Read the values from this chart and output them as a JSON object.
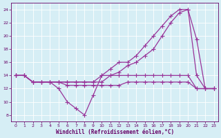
{
  "bg_color": "#d6eef5",
  "line_color": "#993399",
  "grid_color": "#ffffff",
  "xlabel": "Windchill (Refroidissement éolien,°C)",
  "xlabel_color": "#660066",
  "ylim": [
    7,
    25
  ],
  "xlim": [
    -0.5,
    23.5
  ],
  "yticks": [
    8,
    10,
    12,
    14,
    16,
    18,
    20,
    22,
    24
  ],
  "xticks": [
    0,
    1,
    2,
    3,
    4,
    5,
    6,
    7,
    8,
    9,
    10,
    11,
    12,
    13,
    14,
    15,
    16,
    17,
    18,
    19,
    20,
    21,
    22,
    23
  ],
  "series": [
    {
      "x": [
        0,
        1,
        2,
        3,
        4,
        5,
        6,
        7,
        8,
        9,
        10,
        11,
        12,
        13,
        14,
        15,
        16,
        17,
        18,
        19,
        20,
        21,
        22,
        23
      ],
      "y": [
        14,
        14,
        13,
        13,
        13,
        12,
        10,
        9,
        8,
        11,
        14,
        14,
        14,
        14,
        14,
        14,
        14,
        14,
        14,
        14,
        14,
        12,
        12,
        12
      ]
    },
    {
      "x": [
        0,
        1,
        2,
        3,
        4,
        5,
        6,
        7,
        8,
        9,
        10,
        11,
        12,
        13,
        14,
        15,
        16,
        17,
        18,
        19,
        20,
        21,
        22,
        23
      ],
      "y": [
        14,
        14,
        13,
        13,
        13,
        13,
        12.5,
        12.5,
        12.5,
        12.5,
        12.5,
        12.5,
        12.5,
        13,
        13,
        13,
        13,
        13,
        13,
        13,
        13,
        12,
        12,
        12
      ]
    },
    {
      "x": [
        0,
        1,
        2,
        3,
        4,
        5,
        6,
        7,
        8,
        9,
        10,
        11,
        12,
        13,
        14,
        15,
        16,
        17,
        18,
        19,
        20,
        21,
        22,
        23
      ],
      "y": [
        14,
        14,
        13,
        13,
        13,
        13,
        13,
        13,
        13,
        13,
        14,
        15,
        16,
        16,
        17,
        18.5,
        20,
        21.5,
        23,
        24,
        24,
        19.5,
        12,
        12
      ]
    },
    {
      "x": [
        0,
        1,
        2,
        3,
        4,
        5,
        6,
        7,
        8,
        9,
        10,
        11,
        12,
        13,
        14,
        15,
        16,
        17,
        18,
        19,
        20,
        21,
        22,
        23
      ],
      "y": [
        14,
        14,
        13,
        13,
        13,
        13,
        13,
        13,
        13,
        13,
        13,
        14,
        14.5,
        15.5,
        16,
        17,
        18,
        20,
        22,
        23.5,
        24,
        14,
        12,
        12
      ]
    }
  ]
}
